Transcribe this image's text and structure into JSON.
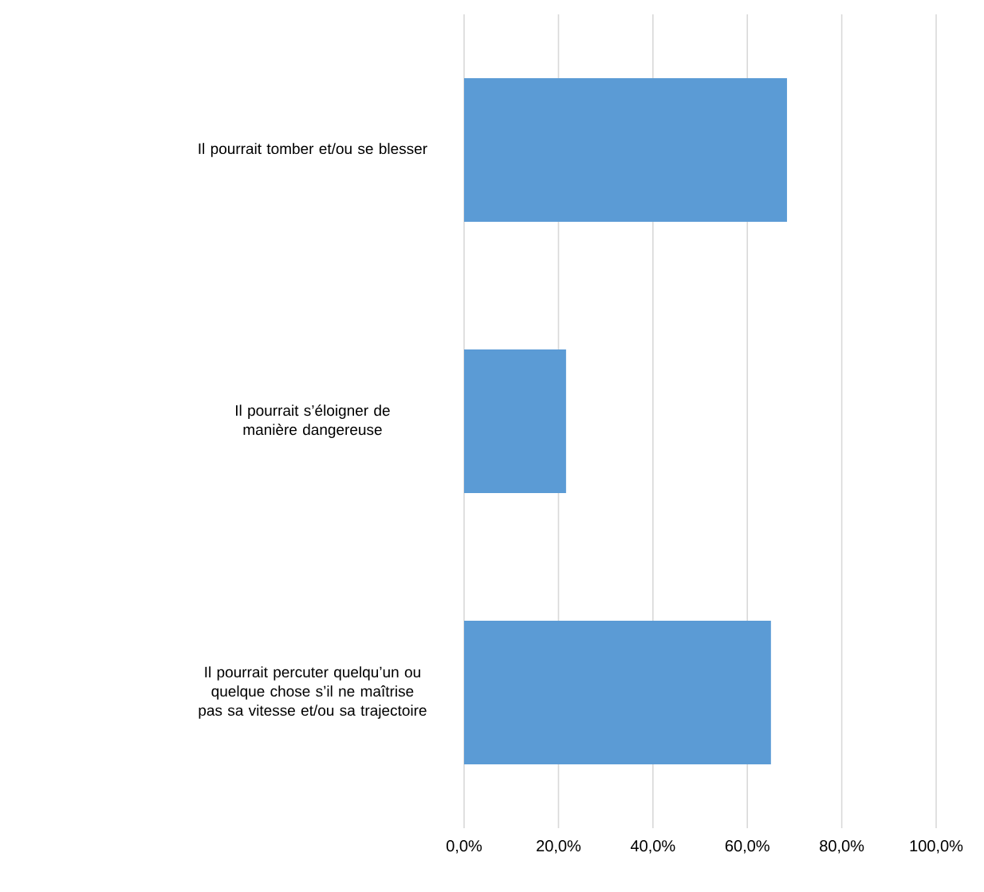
{
  "chart_data": {
    "type": "bar",
    "orientation": "horizontal",
    "categories": [
      "Il pourrait tomber et/ou se blesser",
      "Il pourrait s’éloigner de manière dangereuse",
      "Il pourrait percuter quelqu’un ou quelque chose s’il ne maîtrise pas sa vitesse et/ou sa trajectoire"
    ],
    "values": [
      68.4,
      21.6,
      65.0
    ],
    "color": "#5b9bd5",
    "xlim": [
      0,
      100
    ],
    "xticks": [
      {
        "value": 0,
        "label": "0,0%"
      },
      {
        "value": 20,
        "label": "20,0%"
      },
      {
        "value": 40,
        "label": "40,0%"
      },
      {
        "value": 60,
        "label": "60,0%"
      },
      {
        "value": 80,
        "label": "80,0%"
      },
      {
        "value": 100,
        "label": "100,0%"
      }
    ],
    "grid": "x"
  }
}
